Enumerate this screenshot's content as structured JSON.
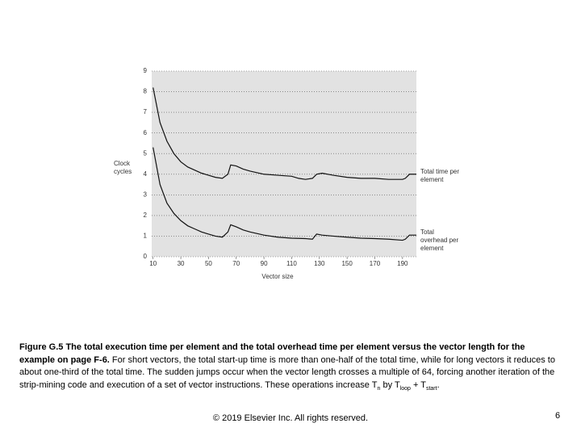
{
  "chart_data": {
    "type": "line",
    "x_label": "Vector size",
    "y_label": "Clock cycles",
    "xlim": [
      9,
      200
    ],
    "ylim": [
      0,
      9
    ],
    "xticks": [
      10,
      30,
      50,
      70,
      90,
      110,
      130,
      150,
      170,
      190
    ],
    "yticks": [
      0,
      1,
      2,
      3,
      4,
      5,
      6,
      7,
      8,
      9
    ],
    "grid": true,
    "series": [
      {
        "name": "Total time per element",
        "color": "#111111",
        "x": [
          10,
          15,
          20,
          25,
          30,
          35,
          40,
          45,
          50,
          55,
          60,
          64,
          66,
          70,
          75,
          80,
          90,
          100,
          110,
          115,
          120,
          125,
          128,
          132,
          140,
          150,
          160,
          170,
          180,
          190,
          192,
          195,
          200
        ],
        "values": [
          8.2,
          6.5,
          5.6,
          5.0,
          4.6,
          4.35,
          4.2,
          4.05,
          3.95,
          3.85,
          3.8,
          4.0,
          4.45,
          4.4,
          4.25,
          4.15,
          4.0,
          3.95,
          3.9,
          3.8,
          3.75,
          3.8,
          4.0,
          4.05,
          3.95,
          3.85,
          3.8,
          3.8,
          3.75,
          3.75,
          3.8,
          4.0,
          4.0
        ]
      },
      {
        "name": "Total overhead per element",
        "color": "#111111",
        "x": [
          10,
          15,
          20,
          25,
          30,
          35,
          40,
          45,
          50,
          55,
          60,
          64,
          66,
          70,
          75,
          80,
          90,
          100,
          110,
          120,
          125,
          128,
          132,
          140,
          150,
          160,
          170,
          180,
          190,
          192,
          195,
          200
        ],
        "values": [
          5.3,
          3.5,
          2.6,
          2.1,
          1.75,
          1.5,
          1.35,
          1.2,
          1.1,
          1.0,
          0.95,
          1.2,
          1.55,
          1.45,
          1.3,
          1.2,
          1.05,
          0.95,
          0.9,
          0.88,
          0.85,
          1.1,
          1.05,
          1.0,
          0.95,
          0.9,
          0.88,
          0.85,
          0.8,
          0.85,
          1.05,
          1.05
        ]
      }
    ]
  },
  "caption": {
    "segments": [
      {
        "text": "Figure G.5 The total execution time per element and the total overhead time per element versus the vector length for the example on page F-6.",
        "style": "bold"
      },
      {
        "text": " For short vectors, the total start-up time is more than one-half of the total time, while for long vectors it reduces to about one-third of the total time. The sudden jumps occur when the vector length crosses a multiple of 64, forcing another iteration of the strip-mining code and execution of a set of vector instructions. These operations increase T",
        "style": "normal"
      },
      {
        "text": "n",
        "style": "sub"
      },
      {
        "text": " by T",
        "style": "normal"
      },
      {
        "text": "loop",
        "style": "sub"
      },
      {
        "text": " + T",
        "style": "normal"
      },
      {
        "text": "start",
        "style": "sub"
      },
      {
        "text": ".",
        "style": "normal"
      }
    ]
  },
  "footer": {
    "copyright": "© 2019 Elsevier Inc. All rights reserved.",
    "page": "6"
  }
}
